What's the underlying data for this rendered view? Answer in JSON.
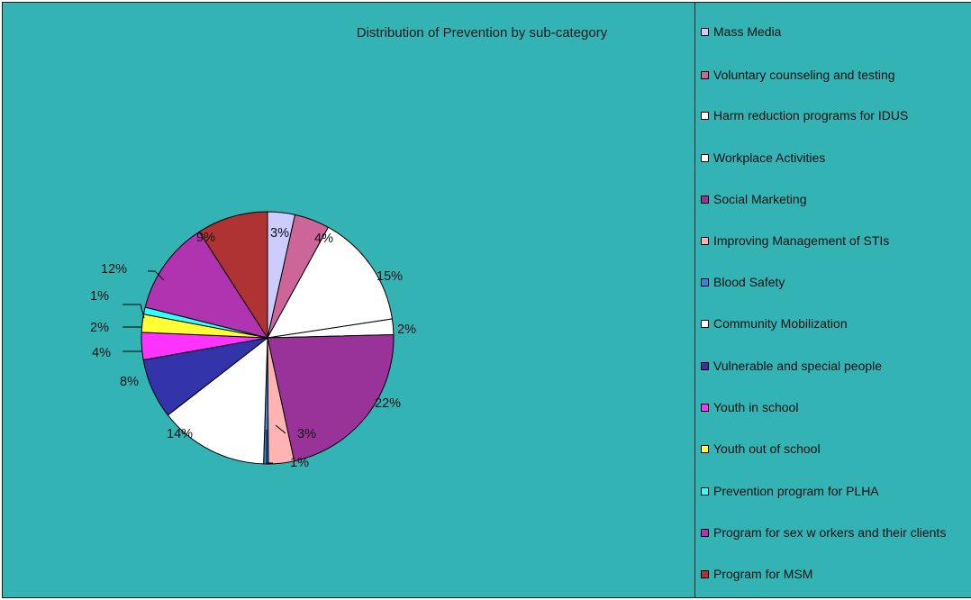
{
  "chart_data": {
    "type": "pie",
    "title": "Distribution of Prevention by sub-category",
    "legend_position": "right",
    "categories": [
      "Mass Media",
      "Voluntary counseling and testing",
      "Harm reduction programs for IDUS",
      "Workplace Activities",
      "Social Marketing",
      "Improving Management of STIs",
      "Blood Safety",
      "Community Mobilization",
      "Vulnerable and special people",
      "Youth in school",
      "Youth out of school",
      "Prevention program for PLHA",
      "Program for sex w orkers and their clients",
      "Program for MSM"
    ],
    "values": [
      3.5,
      4.5,
      14.6,
      2.0,
      22.0,
      3.3,
      0.6,
      14.0,
      7.7,
      3.5,
      2.3,
      0.9,
      12.0,
      9.1
    ],
    "data_labels": [
      "3%",
      "4%",
      "15%",
      "2%",
      "22%",
      "3%",
      "1%",
      "14%",
      "8%",
      "4%",
      "2%",
      "1%",
      "12%",
      "9%"
    ],
    "colors": [
      "#CCCCFF",
      "#CC6699",
      "#FFFFFF",
      "#FFFFFF",
      "#993399",
      "#FFB3B3",
      "#3388DD",
      "#FFFFFF",
      "#3333AA",
      "#FF33FF",
      "#FFFF33",
      "#33FFFF",
      "#B033B0",
      "#B03333"
    ]
  }
}
